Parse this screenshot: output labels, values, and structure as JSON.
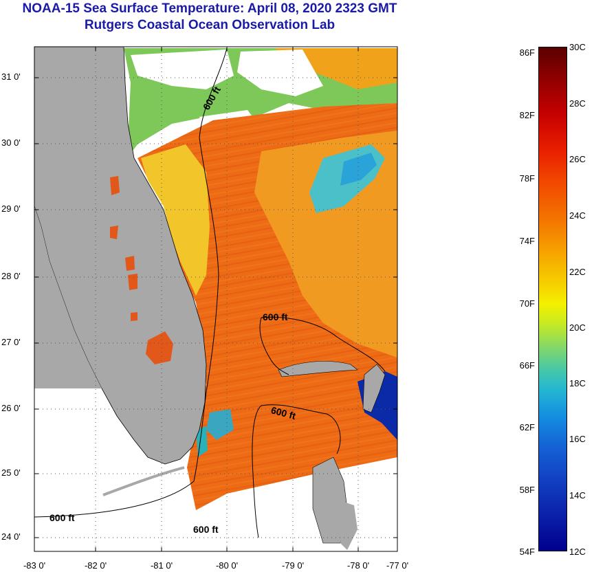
{
  "header": {
    "title": "NOAA-15 Sea Surface Temperature:  April 08, 2020 2323 GMT",
    "subtitle": "Rutgers Coastal Ocean Observation Lab"
  },
  "axes": {
    "latitude_labels": [
      "31 0'",
      "30 0'",
      "29 0'",
      "28 0'",
      "27 0'",
      "26 0'",
      "25 0'",
      "24 0'"
    ],
    "longitude_labels": [
      "-83 0'",
      "-82 0'",
      "-81 0'",
      "-80 0'",
      "-79 0'",
      "-78 0'",
      "-77 0'"
    ]
  },
  "contours": {
    "label": "600 ft"
  },
  "colorbar": {
    "fahrenheit_labels": [
      "86F",
      "82F",
      "78F",
      "74F",
      "70F",
      "66F",
      "62F",
      "58F",
      "54F"
    ],
    "celsius_labels": [
      "30C",
      "28C",
      "26C",
      "24C",
      "22C",
      "20C",
      "18C",
      "16C",
      "14C",
      "12C"
    ]
  },
  "colors": {
    "land": "#a8a8a8",
    "cloud": "#ffffff",
    "title": "#1a1aa6",
    "warm": "#ee6b16",
    "cool": "#1e64d6"
  }
}
